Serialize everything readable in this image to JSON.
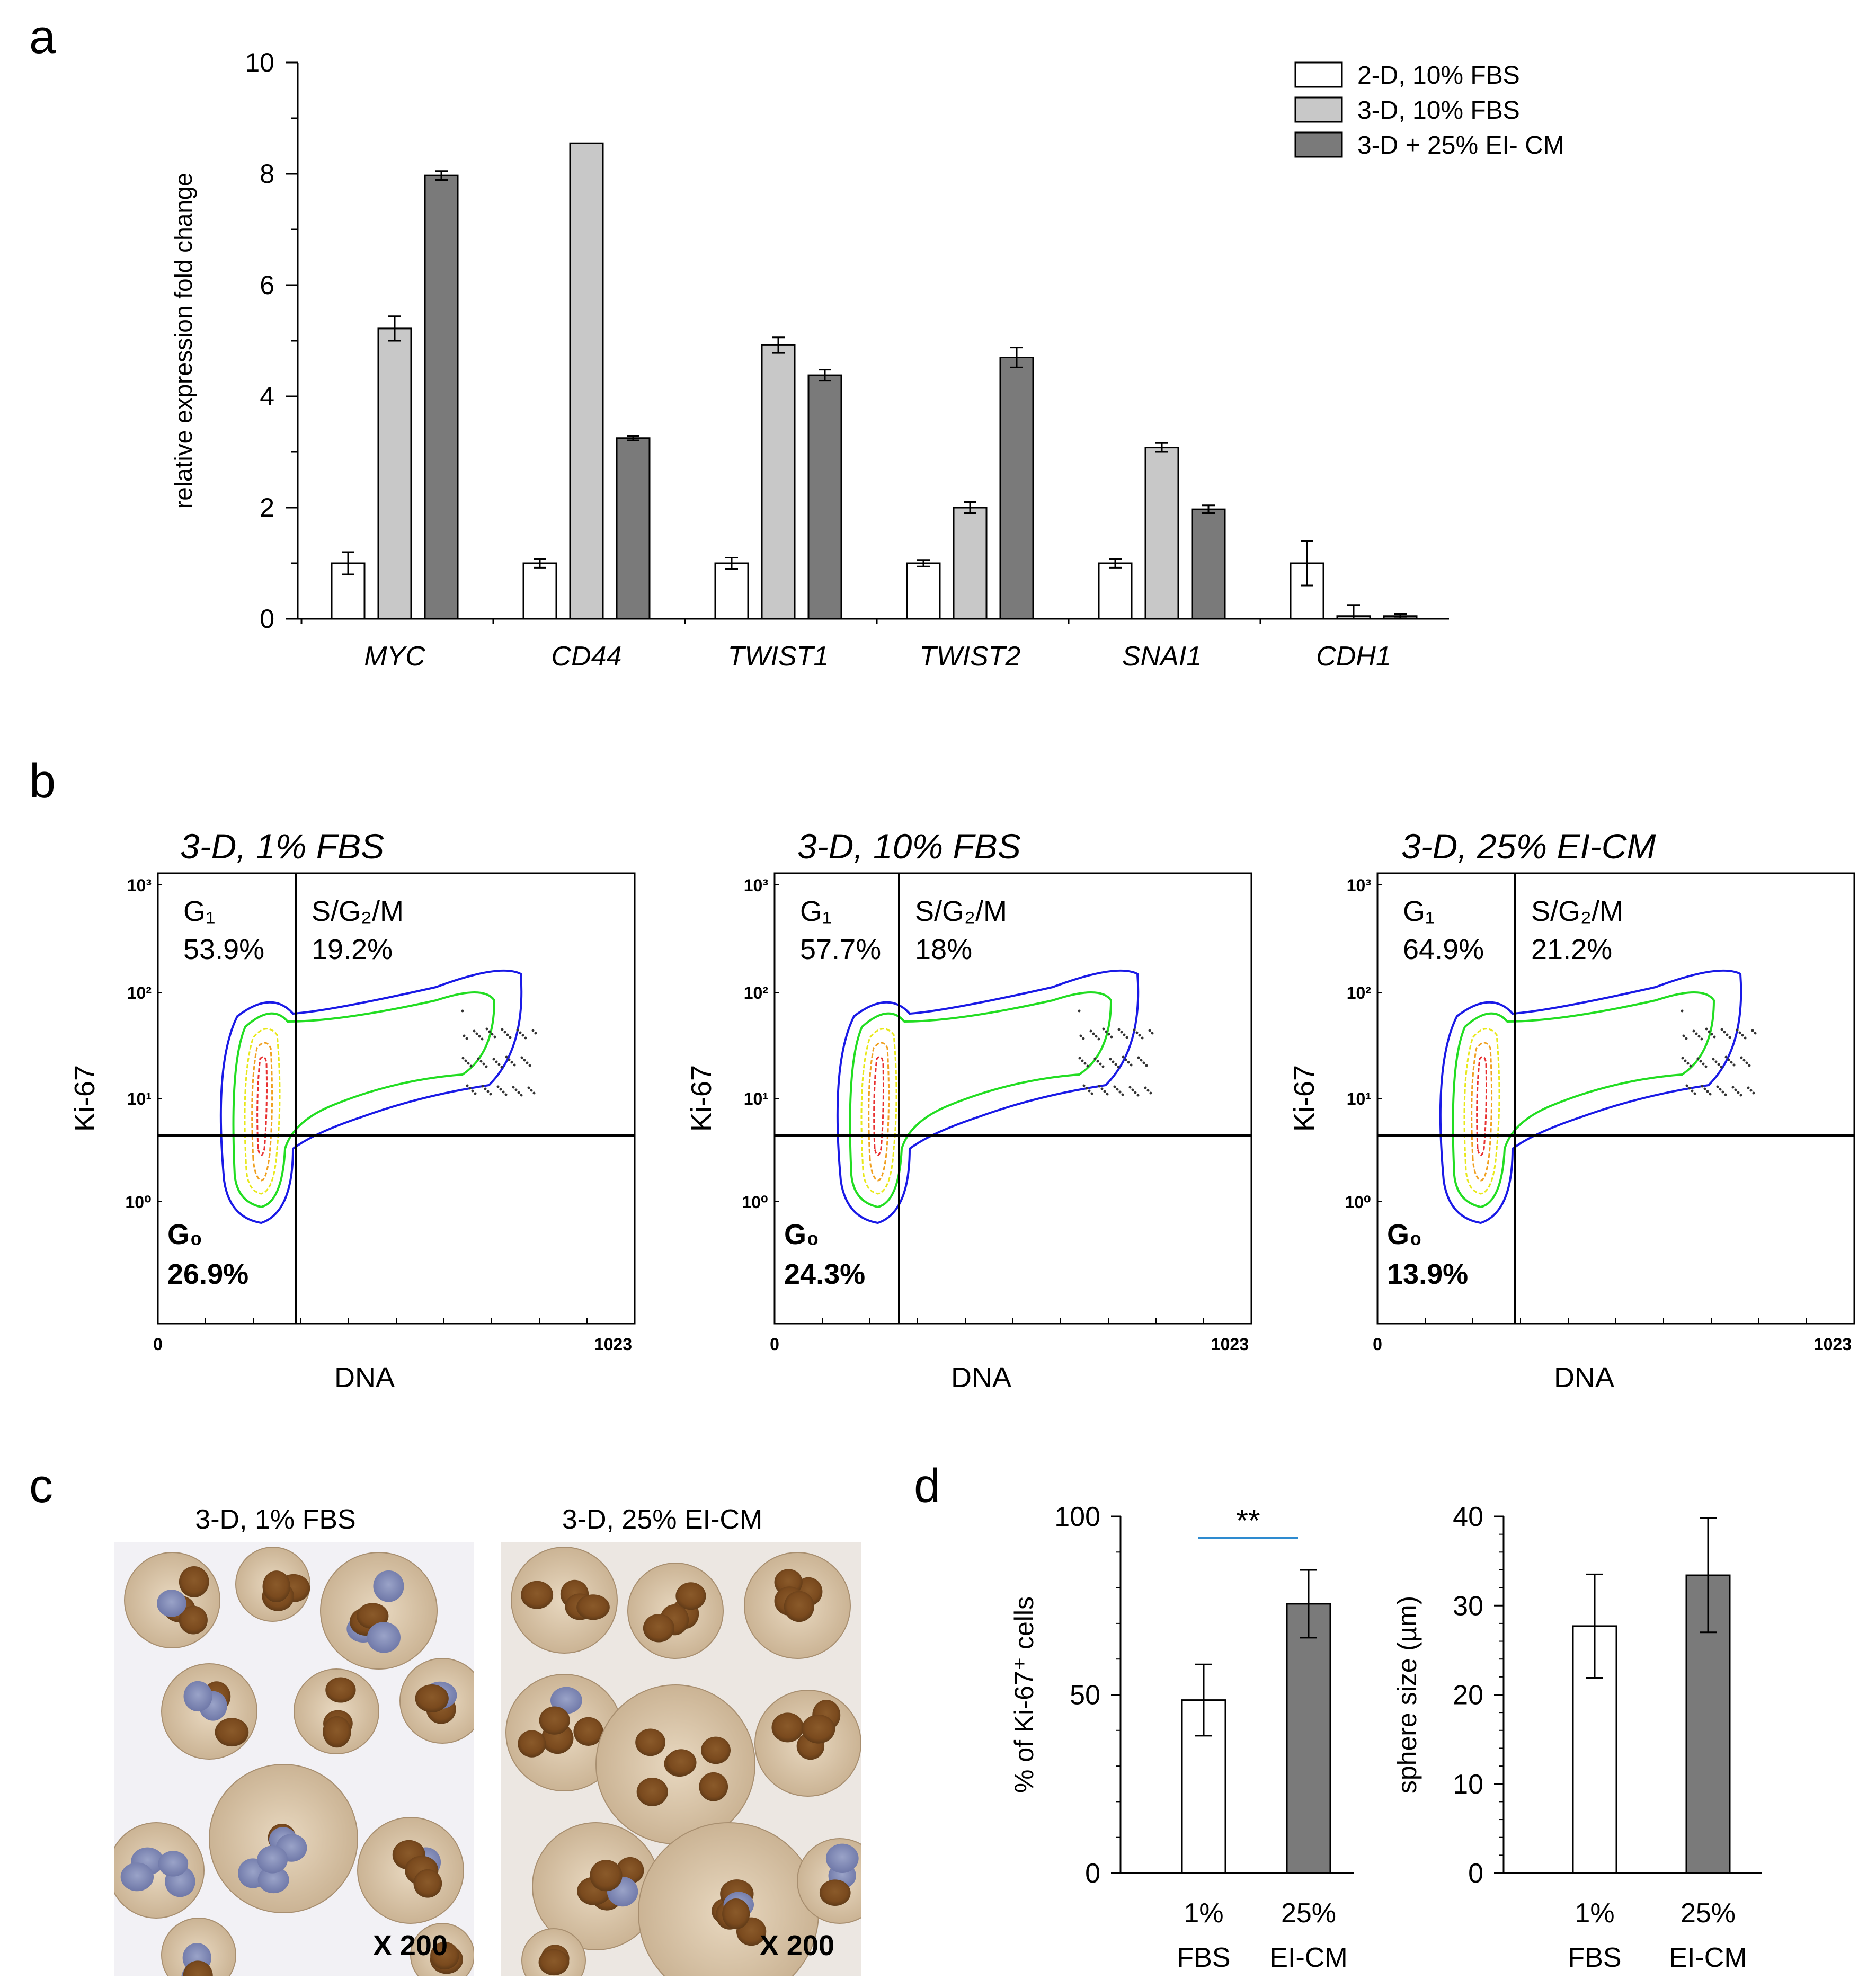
{
  "panel_labels": {
    "a": "a",
    "b": "b",
    "c": "c",
    "d": "d"
  },
  "colors": {
    "white": "#ffffff",
    "light": "#c8c8c8",
    "dark": "#7a7a7a",
    "sig_line": "#2e8bd0",
    "contour_blue": "#1a1ae6",
    "contour_green": "#22dd22",
    "contour_yellow": "#e8e81a",
    "contour_orange": "#f0a020",
    "contour_red": "#e83030"
  },
  "chart_data": [
    {
      "id": "a",
      "type": "bar",
      "ylabel": "relative  expression fold change",
      "ylim": [
        0,
        10
      ],
      "yticks": [
        "0",
        "2",
        "4",
        "6",
        "8",
        "10"
      ],
      "yticks_values": [
        0,
        2,
        4,
        6,
        8,
        10
      ],
      "categories": [
        "MYC",
        "CD44",
        "TWIST1",
        "TWIST2",
        "SNAI1",
        "CDH1"
      ],
      "series": [
        {
          "name": "2-D, 10% FBS",
          "color": "#ffffff",
          "values": [
            1.0,
            1.0,
            1.0,
            1.0,
            1.0,
            1.0
          ],
          "errors": [
            0.2,
            0.08,
            0.1,
            0.06,
            0.08,
            0.4
          ]
        },
        {
          "name": "3-D, 10% FBS",
          "color": "#c8c8c8",
          "values": [
            5.22,
            8.55,
            4.92,
            2.0,
            3.08,
            0.05
          ],
          "errors": [
            0.22,
            0,
            0.14,
            0.1,
            0.08,
            0.2
          ]
        },
        {
          "name": "3-D + 25% EI- CM",
          "color": "#7a7a7a",
          "values": [
            7.97,
            3.25,
            4.38,
            4.7,
            1.97,
            0.05
          ],
          "errors": [
            0.08,
            0.04,
            0.1,
            0.18,
            0.07,
            0.04
          ]
        }
      ]
    },
    {
      "id": "d1",
      "type": "bar",
      "ylabel": "% of Ki-67⁺ cells",
      "ylim": [
        0,
        100
      ],
      "yticks": [
        "0",
        "50",
        "100"
      ],
      "yticks_values": [
        0,
        50,
        100
      ],
      "categories": [
        [
          "1%",
          "FBS"
        ],
        [
          "25%",
          "EI-CM"
        ]
      ],
      "values": [
        48.5,
        75.5
      ],
      "errors": [
        10,
        9.5
      ],
      "colors": [
        "#ffffff",
        "#7a7a7a"
      ],
      "annotation": "**"
    },
    {
      "id": "d2",
      "type": "bar",
      "ylabel": "sphere size (µm)",
      "ylim": [
        0,
        40
      ],
      "yticks": [
        "0",
        "10",
        "20",
        "30",
        "40"
      ],
      "yticks_values": [
        0,
        10,
        20,
        30,
        40
      ],
      "categories": [
        [
          "1%",
          "FBS"
        ],
        [
          "25%",
          "EI-CM"
        ]
      ],
      "values": [
        27.7,
        33.4
      ],
      "errors": [
        5.8,
        6.4
      ],
      "colors": [
        "#ffffff",
        "#7a7a7a"
      ]
    }
  ],
  "flow": {
    "ylabel": "Ki-67",
    "xlabel": "DNA",
    "x_ticks": [
      "0",
      "1023"
    ],
    "y_ticks": [
      "10⁰",
      "10¹",
      "10²",
      "10³"
    ],
    "plots": [
      {
        "title": "3-D, 1% FBS",
        "g1_label": "G₁",
        "g1_value": "53.9%",
        "sg2m_label": "S/G₂/M",
        "sg2m_value": "19.2%",
        "g0_label": "G₀",
        "g0_value": "26.9%"
      },
      {
        "title": "3-D, 10% FBS",
        "g1_label": "G₁",
        "g1_value": "57.7%",
        "sg2m_label": "S/G₂/M",
        "sg2m_value": "18%",
        "g0_label": "G₀",
        "g0_value": "24.3%"
      },
      {
        "title": "3-D, 25% EI-CM",
        "g1_label": "G₁",
        "g1_value": "64.9%",
        "sg2m_label": "S/G₂/M",
        "sg2m_value": "21.2%",
        "g0_label": "G₀",
        "g0_value": "13.9%"
      }
    ]
  },
  "micro": [
    {
      "title": "3-D, 1% FBS",
      "mag": "X 200"
    },
    {
      "title": "3-D, 25% EI-CM",
      "mag": "X 200"
    }
  ]
}
